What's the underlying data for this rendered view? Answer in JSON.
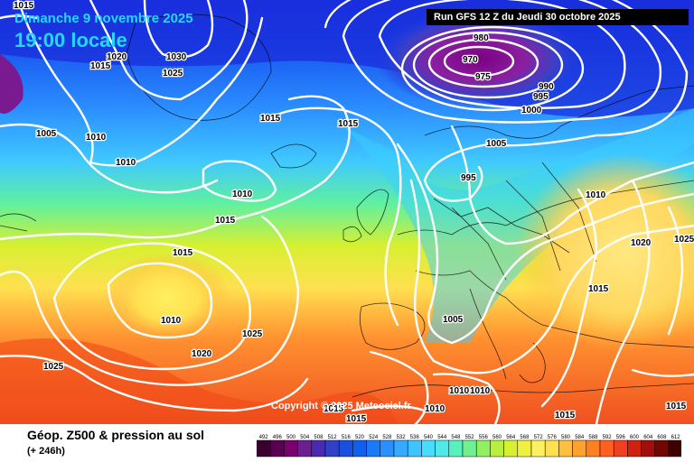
{
  "header": {
    "date": "Dimanche 9 novembre 2025",
    "time": "19:00 locale",
    "run": "Run GFS 12 Z du Jeudi 30 octobre 2025"
  },
  "copyright": "Copyright © 2025 Meteociel.fr",
  "footer": {
    "title": "Géop. Z500 & pression au sol",
    "lead": "(+ 246h)"
  },
  "scale": {
    "values": [
      "492",
      "496",
      "500",
      "504",
      "508",
      "512",
      "516",
      "520",
      "524",
      "528",
      "532",
      "536",
      "540",
      "544",
      "548",
      "552",
      "556",
      "560",
      "564",
      "568",
      "572",
      "576",
      "580",
      "584",
      "588",
      "592",
      "596",
      "600",
      "604",
      "608",
      "612"
    ],
    "colors": [
      "#3a0030",
      "#5a0050",
      "#7a0070",
      "#6a2090",
      "#4a2ab0",
      "#3040c8",
      "#1a50e0",
      "#1060f0",
      "#1a7af8",
      "#2a90ff",
      "#36aaff",
      "#40c4ff",
      "#48dcff",
      "#50e8e8",
      "#58f0c0",
      "#70f090",
      "#90f060",
      "#b8f040",
      "#d8f030",
      "#f0f040",
      "#fff060",
      "#ffe050",
      "#ffc040",
      "#ffa030",
      "#ff8020",
      "#ff6020",
      "#f04020",
      "#d02010",
      "#a01008",
      "#700800",
      "#400000"
    ]
  },
  "isobars": {
    "low_label": "970",
    "labels": [
      {
        "text": "1015"
      },
      {
        "text": "1020"
      },
      {
        "text": "1015"
      },
      {
        "text": "1030"
      },
      {
        "text": "1025"
      },
      {
        "text": "1005"
      },
      {
        "text": "1010"
      },
      {
        "text": "1010"
      },
      {
        "text": "1015"
      },
      {
        "text": "1015"
      },
      {
        "text": "980"
      },
      {
        "text": "975"
      },
      {
        "text": "990"
      },
      {
        "text": "995"
      },
      {
        "text": "1000"
      },
      {
        "text": "1005"
      },
      {
        "text": "995"
      },
      {
        "text": "1010"
      },
      {
        "text": "1015"
      },
      {
        "text": "1015"
      },
      {
        "text": "1010"
      },
      {
        "text": "1020"
      },
      {
        "text": "1025"
      },
      {
        "text": "1025"
      },
      {
        "text": "1005"
      },
      {
        "text": "1010"
      },
      {
        "text": "1015"
      },
      {
        "text": "1020"
      },
      {
        "text": "1025"
      },
      {
        "text": "1010"
      },
      {
        "text": "1010"
      },
      {
        "text": "1015"
      },
      {
        "text": "1015"
      },
      {
        "text": "1010"
      },
      {
        "text": "1015"
      },
      {
        "text": "1015"
      }
    ]
  }
}
